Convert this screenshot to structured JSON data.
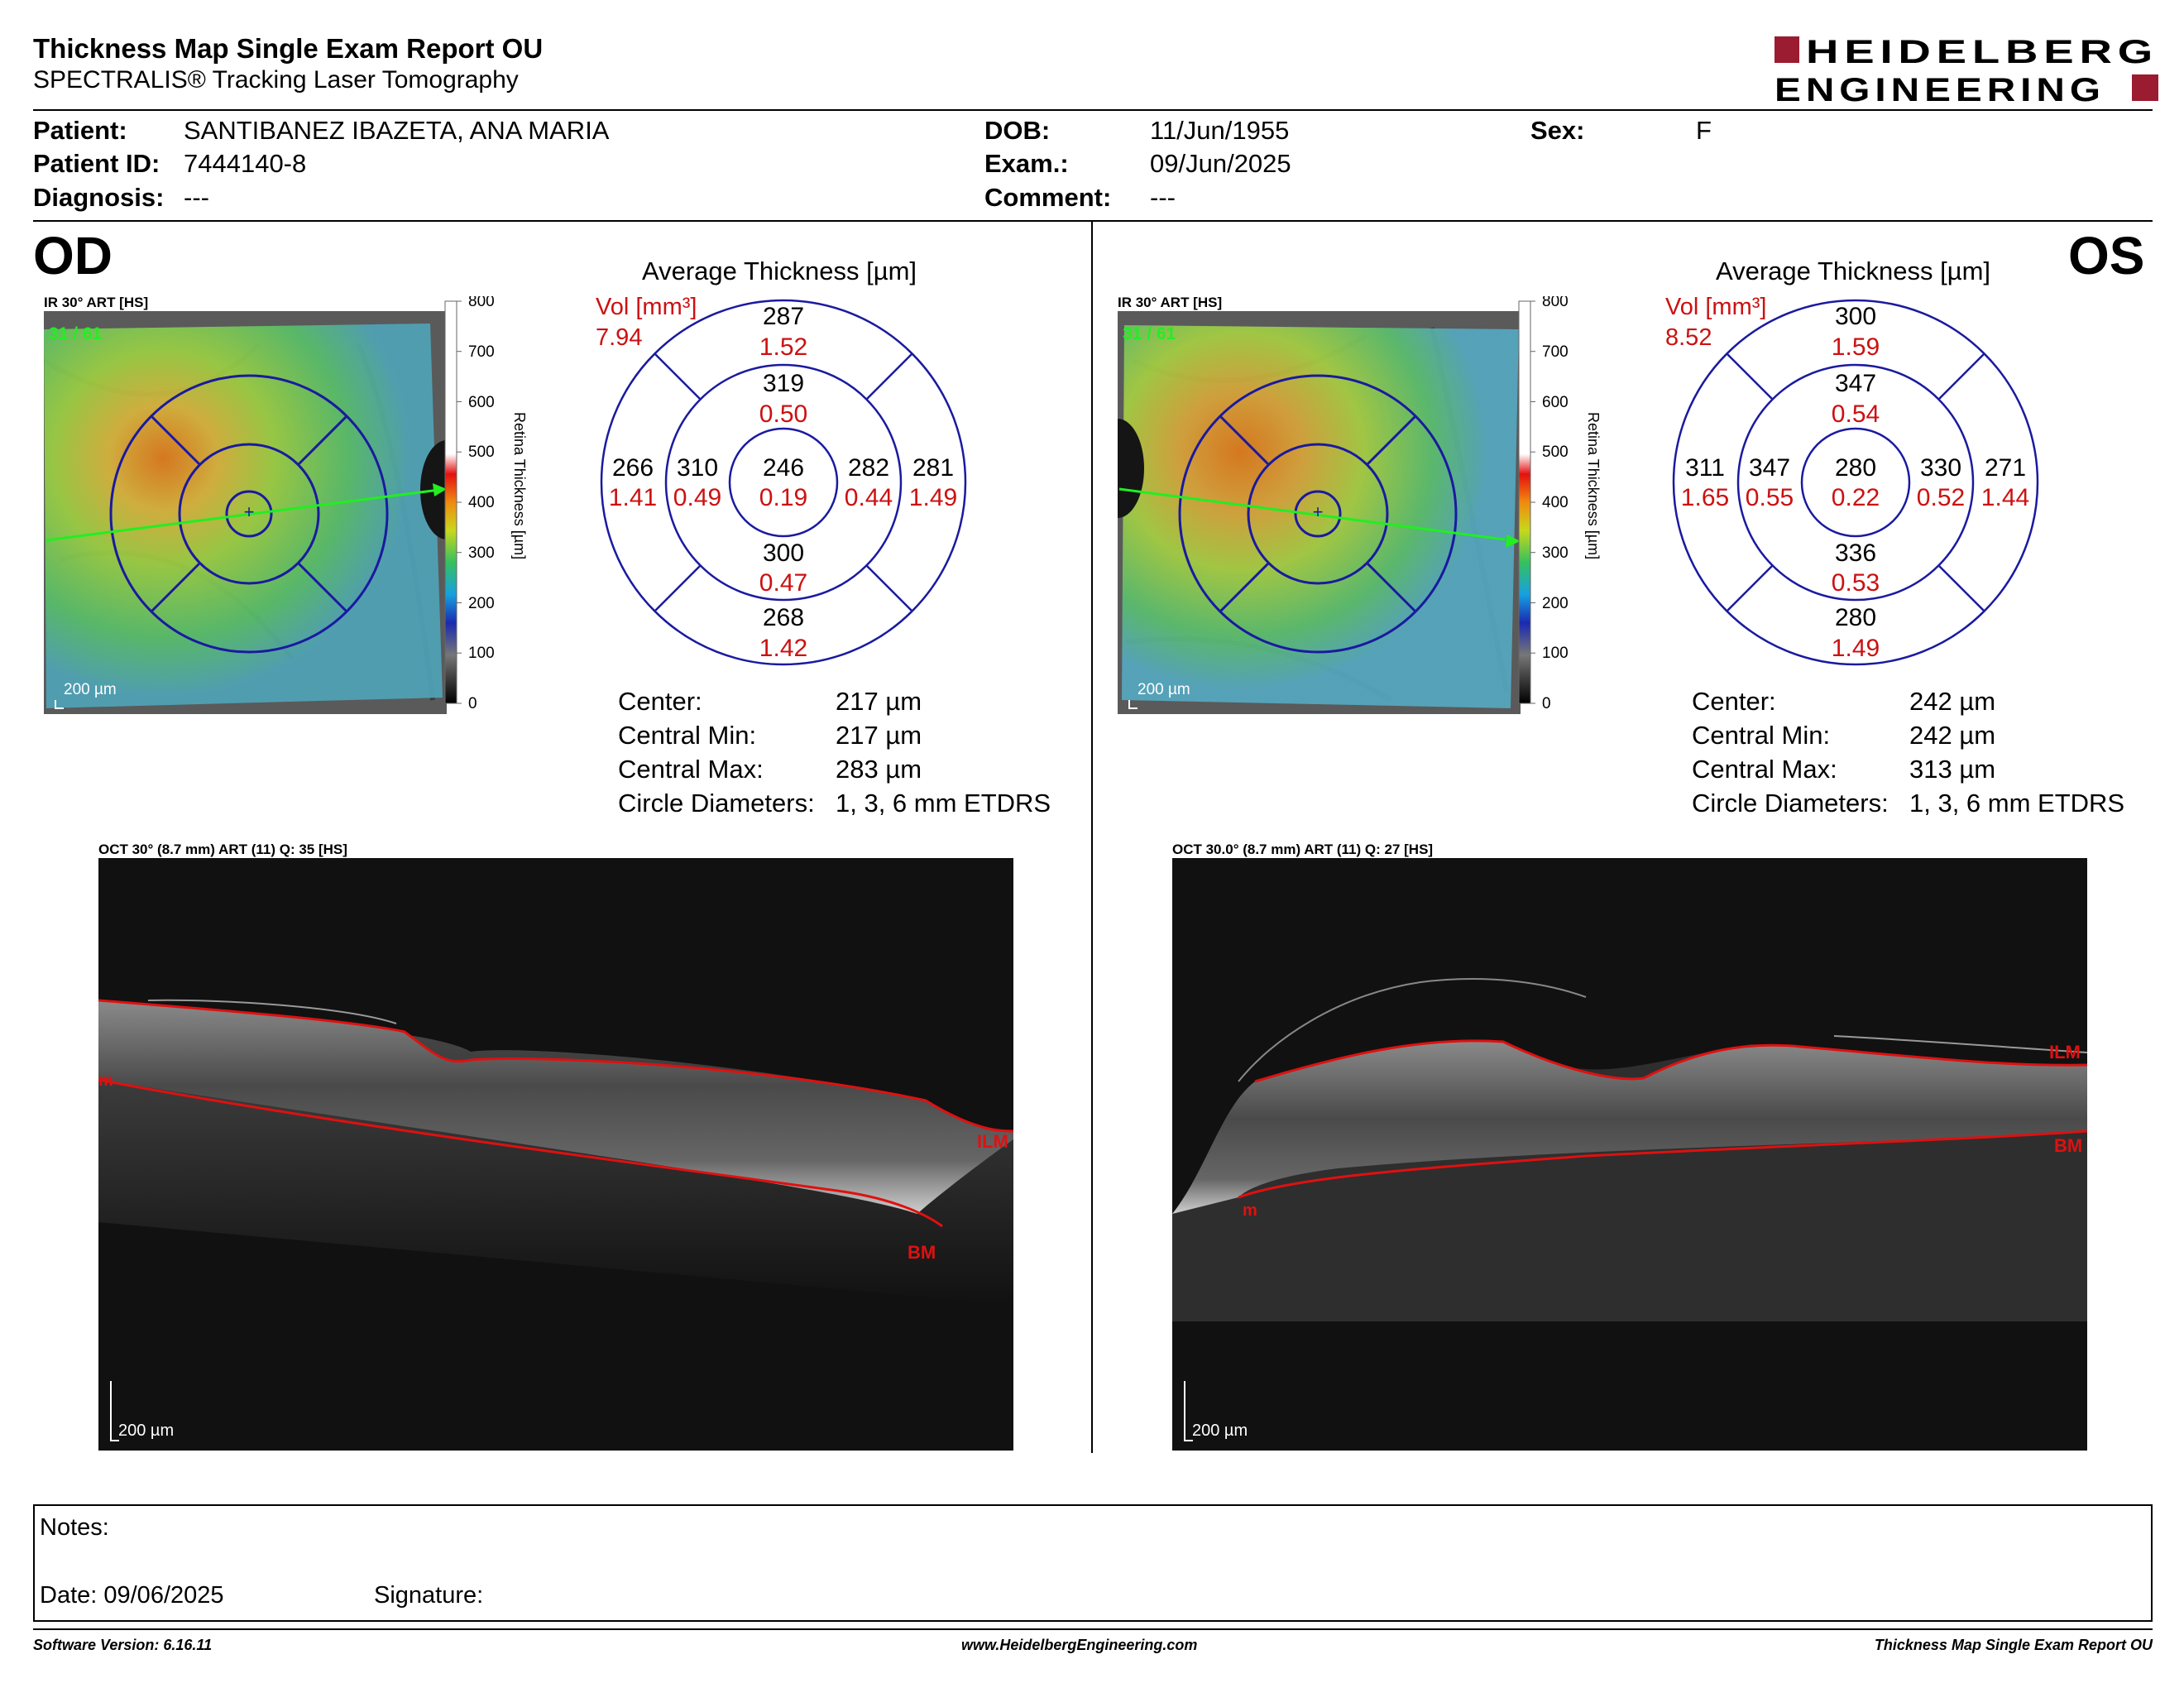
{
  "header": {
    "title": "Thickness Map Single Exam Report OU",
    "subtitle": "SPECTRALIS® Tracking Laser Tomography",
    "logo_line1": "HEIDELBERG",
    "logo_line2": "ENGINEERING",
    "logo_color": "#9b1b30"
  },
  "patient": {
    "patient_label": "Patient:",
    "patient_value": "SANTIBANEZ IBAZETA, ANA MARIA",
    "id_label": "Patient ID:",
    "id_value": "7444140-8",
    "diagnosis_label": "Diagnosis:",
    "diagnosis_value": "---",
    "dob_label": "DOB:",
    "dob_value": "11/Jun/1955",
    "exam_label": "Exam.:",
    "exam_value": "09/Jun/2025",
    "comment_label": "Comment:",
    "comment_value": "---",
    "sex_label": "Sex:",
    "sex_value": "F"
  },
  "od": {
    "eye": "OD",
    "ir_caption": "IR 30° ART [HS]",
    "frames": "31 / 61",
    "scale": "200 µm",
    "colorbar_ticks": [
      "800",
      "700",
      "600",
      "500",
      "400",
      "300",
      "200",
      "100",
      "0"
    ],
    "colorbar_label": "Retina Thickness [µm]",
    "avg_title": "Average Thickness [µm]",
    "vol_label": "Vol [mm³]",
    "vol_value": "7.94",
    "sectors": {
      "outer_top": {
        "t": "287",
        "v": "1.52"
      },
      "inner_top": {
        "t": "319",
        "v": "0.50"
      },
      "outer_left": {
        "t": "266",
        "v": "1.41"
      },
      "inner_left": {
        "t": "310",
        "v": "0.49"
      },
      "center": {
        "t": "246",
        "v": "0.19"
      },
      "inner_right": {
        "t": "282",
        "v": "0.44"
      },
      "outer_right": {
        "t": "281",
        "v": "1.49"
      },
      "inner_bottom": {
        "t": "300",
        "v": "0.47"
      },
      "outer_bottom": {
        "t": "268",
        "v": "1.42"
      }
    },
    "stats": [
      {
        "label": "Center:",
        "value": "217 µm"
      },
      {
        "label": "Central Min:",
        "value": "217 µm"
      },
      {
        "label": "Central Max:",
        "value": "283 µm"
      },
      {
        "label": "Circle Diameters:",
        "value": "1, 3, 6 mm ETDRS"
      }
    ],
    "oct_caption": "OCT 30° (8.7 mm) ART (11) Q: 35 [HS]",
    "oct_scale": "200 µm",
    "ilm": "ILM",
    "bm": "BM"
  },
  "os": {
    "eye": "OS",
    "ir_caption": "IR 30° ART [HS]",
    "frames": "31 / 61",
    "scale": "200 µm",
    "colorbar_ticks": [
      "800",
      "700",
      "600",
      "500",
      "400",
      "300",
      "200",
      "100",
      "0"
    ],
    "colorbar_label": "Retina Thickness [µm]",
    "avg_title": "Average Thickness [µm]",
    "vol_label": "Vol [mm³]",
    "vol_value": "8.52",
    "sectors": {
      "outer_top": {
        "t": "300",
        "v": "1.59"
      },
      "inner_top": {
        "t": "347",
        "v": "0.54"
      },
      "outer_left": {
        "t": "311",
        "v": "1.65"
      },
      "inner_left": {
        "t": "347",
        "v": "0.55"
      },
      "center": {
        "t": "280",
        "v": "0.22"
      },
      "inner_right": {
        "t": "330",
        "v": "0.52"
      },
      "outer_right": {
        "t": "271",
        "v": "1.44"
      },
      "inner_bottom": {
        "t": "336",
        "v": "0.53"
      },
      "outer_bottom": {
        "t": "280",
        "v": "1.49"
      }
    },
    "stats": [
      {
        "label": "Center:",
        "value": "242 µm"
      },
      {
        "label": "Central Min:",
        "value": "242 µm"
      },
      {
        "label": "Central Max:",
        "value": "313 µm"
      },
      {
        "label": "Circle Diameters:",
        "value": "1, 3, 6 mm ETDRS"
      }
    ],
    "oct_caption": "OCT 30.0° (8.7 mm) ART (11) Q: 27 [HS]",
    "oct_scale": "200 µm",
    "ilm": "ILM",
    "bm": "BM"
  },
  "notes": {
    "notes_label": "Notes:",
    "date_label": "Date: 09/06/2025",
    "signature_label": "Signature:"
  },
  "footer": {
    "software": "Software Version: 6.16.11",
    "website": "www.HeidelbergEngineering.com",
    "report": "Thickness Map Single Exam Report OU"
  }
}
